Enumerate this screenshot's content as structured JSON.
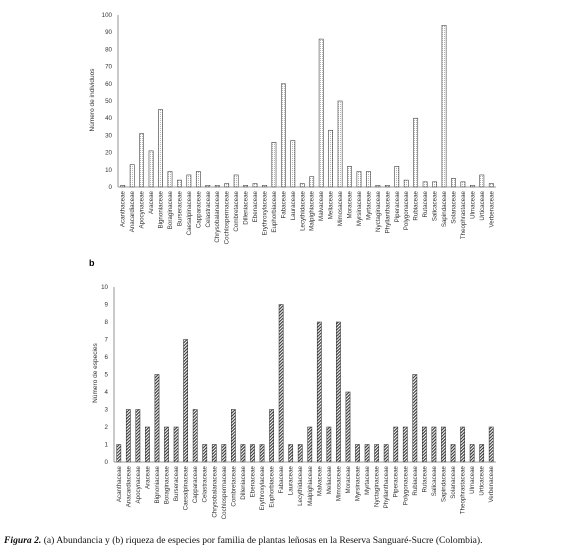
{
  "figure": {
    "panel_b_label": "b",
    "caption_prefix": "Figura 2.",
    "caption_text": " (a) Abundancia y (b) riqueza de especies por familia de plantas leñosas en la Reserva Sanguaré-Sucre (Colombia)."
  },
  "chart_data": [
    {
      "type": "bar",
      "panel": "a",
      "ylabel": "Número de individuos",
      "xlabel": "",
      "ylim": [
        0,
        100
      ],
      "yticks": [
        0,
        10,
        20,
        30,
        40,
        50,
        60,
        70,
        80,
        90,
        100
      ],
      "bar_fill": "dotted-white",
      "categories": [
        "Acanthaceae",
        "Anacardiaceae",
        "Apocynaceae",
        "Araceae",
        "Bignoniaceae",
        "Boraginaceae",
        "Burseraceae",
        "Caesalpinaceae",
        "Capparaceae",
        "Celastraceae",
        "Chrysobalanaceae",
        "Cochlospermaceae",
        "Combretaceae",
        "Dilleniaceae",
        "Ebenaceae",
        "Erythroxylaceae",
        "Euphorbiaceae",
        "Fabaceae",
        "Lauraceae",
        "Lecythidaceae",
        "Malpighiaceae",
        "Malvaceae",
        "Meliaceae",
        "Mimosaceae",
        "Moraceae",
        "Myrsinaceae",
        "Myrtaceae",
        "Nyctaginaceae",
        "Phyllanthaceae",
        "Piperaceae",
        "Polygonaceae",
        "Rubiaceae",
        "Rutaceae",
        "Salicaceae",
        "Sapindaceae",
        "Solanaceae",
        "Theophrastaceae",
        "Ulmaceae",
        "Urticaceae",
        "Verbenaceae"
      ],
      "values": [
        1,
        13,
        31,
        21,
        45,
        9,
        4,
        7,
        9,
        1,
        1,
        2,
        7,
        1,
        2,
        1,
        26,
        60,
        27,
        2,
        6,
        86,
        33,
        50,
        12,
        9,
        9,
        1,
        1,
        12,
        4,
        40,
        3,
        3,
        94,
        5,
        3,
        1,
        7,
        2
      ]
    },
    {
      "type": "bar",
      "panel": "b",
      "ylabel": "Número de especies",
      "xlabel": "",
      "ylim": [
        0,
        10
      ],
      "yticks": [
        0,
        1,
        2,
        3,
        4,
        5,
        6,
        7,
        8,
        9,
        10
      ],
      "bar_fill": "diagonal-hatch",
      "categories": [
        "Acanthaceae",
        "Anacardiaceae",
        "Apocynaceae",
        "Araceae",
        "Bignoniaceae",
        "Boraginaceae",
        "Burseraceae",
        "Caesalpinaceae",
        "Capparaceae",
        "Celastraceae",
        "Chrysobalanaceae",
        "Cochlospermaceae",
        "Combretaceae",
        "Dilleniaceae",
        "Ebenaceae",
        "Erythroxylaceae",
        "Euphorbiaceae",
        "Fabaceae",
        "Lauraceae",
        "Lecythidaceae",
        "Malpighiaceae",
        "Malvaceae",
        "Meliaceae",
        "Mimosaceae",
        "Moraceae",
        "Myrsinaceae",
        "Myrtaceae",
        "Nyctaginaceae",
        "Phyllanthaceae",
        "Piperaceae",
        "Polygonaceae",
        "Rubiaceae",
        "Rutaceae",
        "Salicaceae",
        "Sapindaceae",
        "Solanaceae",
        "Theophrastaceae",
        "Ulmaceae",
        "Urticaceae",
        "Verbenaceae"
      ],
      "values": [
        1,
        3,
        3,
        2,
        5,
        2,
        2,
        7,
        3,
        1,
        1,
        1,
        3,
        1,
        1,
        1,
        3,
        9,
        1,
        1,
        2,
        8,
        2,
        8,
        4,
        1,
        1,
        1,
        1,
        2,
        2,
        5,
        2,
        2,
        2,
        1,
        2,
        1,
        1,
        2
      ]
    }
  ]
}
